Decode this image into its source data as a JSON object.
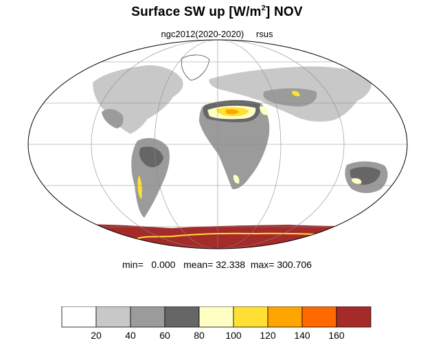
{
  "title": {
    "main": "Surface SW up [W/m",
    "superscript": "2",
    "suffix": "]  NOV"
  },
  "subtitle": {
    "source": "ngc2012(2020-2020)",
    "variable": "rsus"
  },
  "stats": {
    "min_label": "min=",
    "min_value": "0.000",
    "mean_label": "mean=",
    "mean_value": "32.338",
    "max_label": "max=",
    "max_value": "300.706"
  },
  "colorbar": {
    "levels": [
      "20",
      "40",
      "60",
      "80",
      "100",
      "120",
      "140",
      "160"
    ],
    "colors": [
      "#ffffff",
      "#c8c8c8",
      "#9b9b9b",
      "#666666",
      "#ffffc4",
      "#ffe033",
      "#ffa500",
      "#ff6a00",
      "#a52a2a"
    ]
  },
  "map": {
    "projection": "mollweide",
    "graticule": true
  }
}
